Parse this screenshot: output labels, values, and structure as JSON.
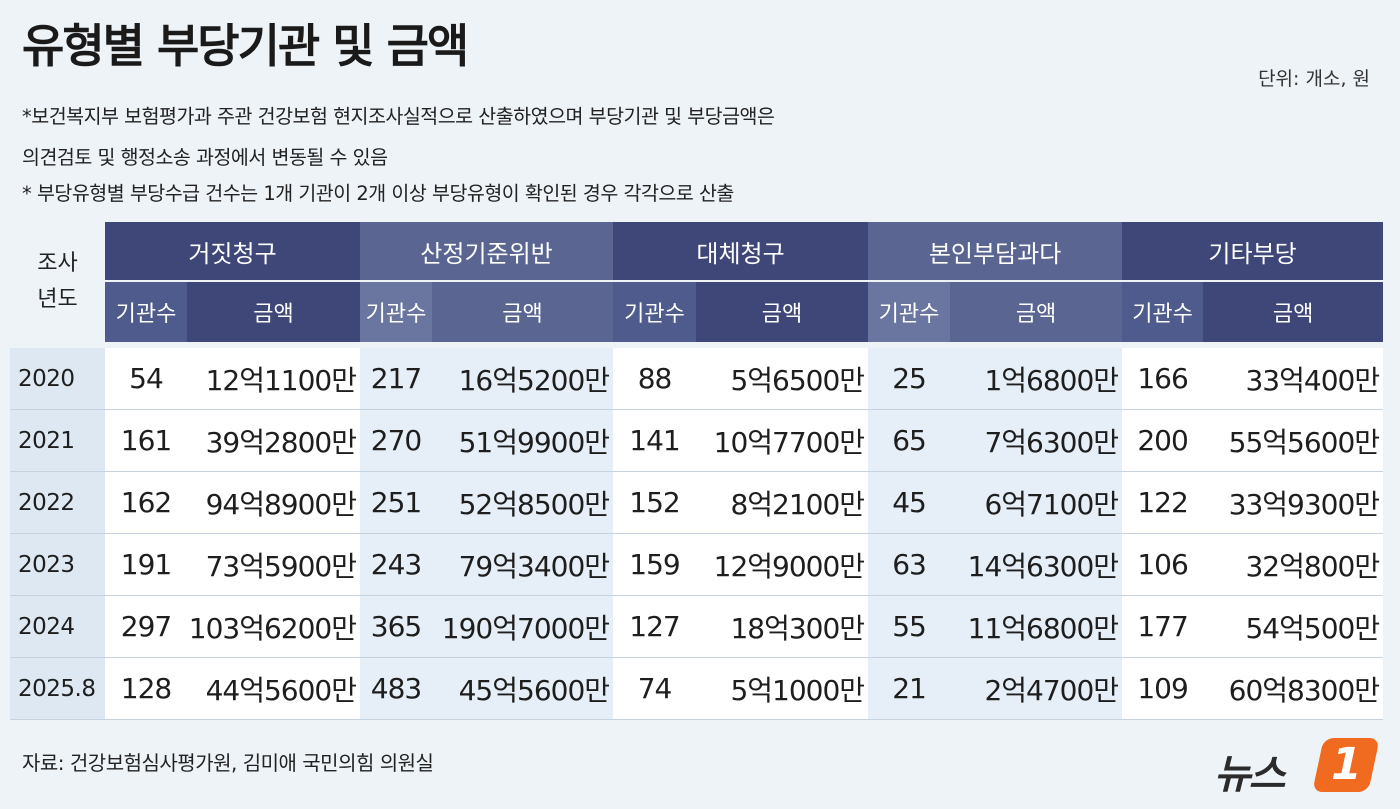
{
  "title": "유형별 부당기관 및 금액",
  "unit": "단위: 개소, 원",
  "notes": [
    "*보건복지부 보험평가과 주관 건강보험 현지조사실적으로 산출하였으며 부당기관 및 부당금액은",
    "의견검토 및 행정소송 과정에서 변동될 수 있음",
    "* 부당유형별 부당수급 건수는 1개 기관이 2개 이상 부당유형이 확인된 경우 각각으로 산출"
  ],
  "table": {
    "year_header_1": "조사",
    "year_header_2": "년도",
    "groups": [
      "거짓청구",
      "산정기준위반",
      "대체청구",
      "본인부담과다",
      "기타부당"
    ],
    "sub_count": "기관수",
    "sub_amount": "금액",
    "rows": [
      {
        "year": "2020",
        "cells": [
          "54",
          "12억1100만",
          "217",
          "16억5200만",
          "88",
          "5억6500만",
          "25",
          "1억6800만",
          "166",
          "33억400만"
        ]
      },
      {
        "year": "2021",
        "cells": [
          "161",
          "39억2800만",
          "270",
          "51억9900만",
          "141",
          "10억7700만",
          "65",
          "7억6300만",
          "200",
          "55억5600만"
        ]
      },
      {
        "year": "2022",
        "cells": [
          "162",
          "94억8900만",
          "251",
          "52억8500만",
          "152",
          "8억2100만",
          "45",
          "6억7100만",
          "122",
          "33억9300만"
        ]
      },
      {
        "year": "2023",
        "cells": [
          "191",
          "73억5900만",
          "243",
          "79억3400만",
          "159",
          "12억9000만",
          "63",
          "14억6300만",
          "106",
          "32억800만"
        ]
      },
      {
        "year": "2024",
        "cells": [
          "297",
          "103억6200만",
          "365",
          "190억7000만",
          "127",
          "18억300만",
          "55",
          "11억6800만",
          "177",
          "54억500만"
        ]
      },
      {
        "year": "2025.8",
        "cells": [
          "128",
          "44억5600만",
          "483",
          "45억5600만",
          "74",
          "5억1000만",
          "21",
          "2억4700만",
          "109",
          "60억8300만"
        ]
      }
    ]
  },
  "source": "자료: 건강보험심사평가원, 김미애 국민의힘 의원실",
  "logo": {
    "text": "뉴스",
    "badge": "1"
  },
  "colors": {
    "header_dark": "#3f4778",
    "header_light": "#5a6691",
    "accent_orange": "#f06a20",
    "background": "#eef3f8"
  }
}
